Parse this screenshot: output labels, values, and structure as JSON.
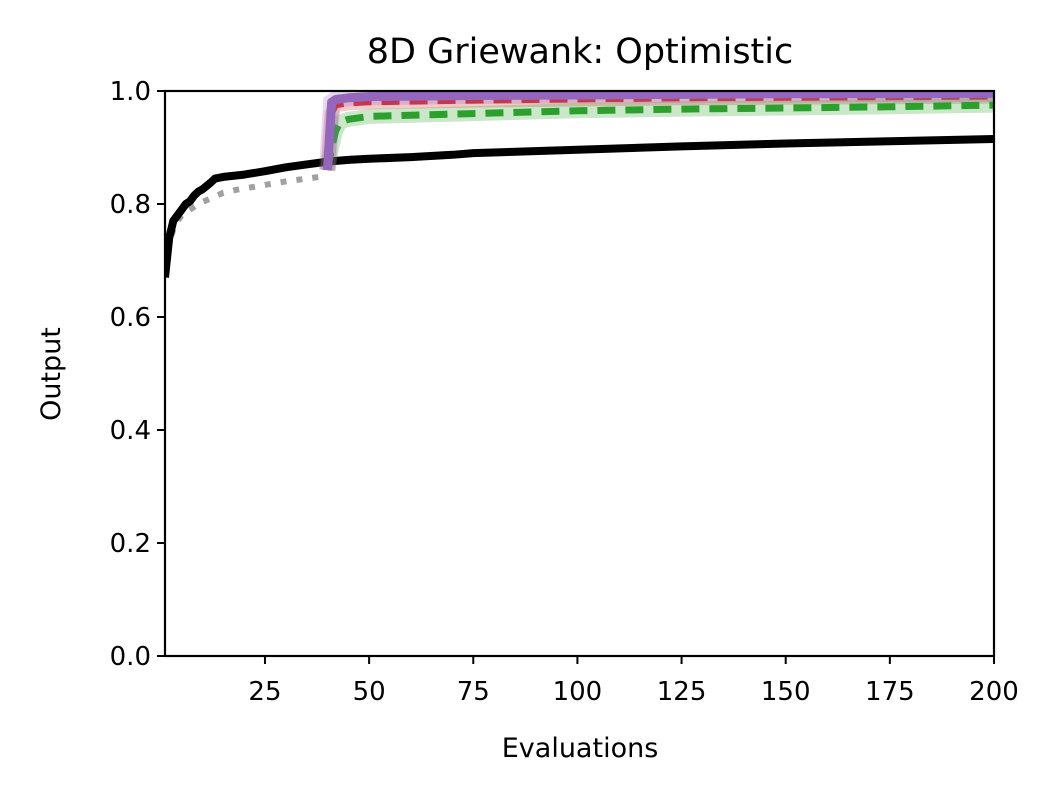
{
  "chart_data": {
    "type": "line",
    "title": "8D Griewank: Optimistic",
    "xlabel": "Evaluations",
    "ylabel": "Output",
    "xlim": [
      1,
      200
    ],
    "ylim": [
      0,
      1
    ],
    "xticks": [
      25,
      50,
      75,
      100,
      125,
      150,
      175,
      200
    ],
    "xtick_labels": [
      "25",
      "50",
      "75",
      "100",
      "125",
      "150",
      "175",
      "200"
    ],
    "yticks": [
      0,
      0.2,
      0.4,
      0.6,
      0.8,
      1.0
    ],
    "ytick_labels": [
      "0.0",
      "0.2",
      "0.4",
      "0.6",
      "0.8",
      "1.0"
    ],
    "grid": false,
    "series": [
      {
        "color": "#a0a0a0",
        "style": "dotted",
        "width": 6,
        "x": [
          1,
          2,
          3,
          4,
          5,
          7,
          9,
          12,
          15,
          18,
          22,
          26,
          30,
          35,
          40
        ],
        "y": [
          0.69,
          0.73,
          0.755,
          0.77,
          0.78,
          0.79,
          0.8,
          0.81,
          0.82,
          0.825,
          0.83,
          0.835,
          0.84,
          0.845,
          0.85
        ]
      },
      {
        "color": "#000000",
        "style": "solid",
        "width": 8,
        "x": [
          1,
          2,
          3,
          4,
          5,
          6,
          7,
          8,
          9,
          10,
          11,
          12,
          13,
          15,
          20,
          25,
          30,
          35,
          40,
          45,
          50,
          60,
          70,
          75,
          100,
          125,
          150,
          175,
          200
        ],
        "y": [
          0.67,
          0.74,
          0.77,
          0.78,
          0.79,
          0.8,
          0.805,
          0.815,
          0.822,
          0.826,
          0.832,
          0.838,
          0.845,
          0.848,
          0.852,
          0.858,
          0.865,
          0.87,
          0.875,
          0.878,
          0.88,
          0.883,
          0.887,
          0.89,
          0.896,
          0.902,
          0.907,
          0.911,
          0.915
        ]
      },
      {
        "color": "#d62728",
        "style": "dashed",
        "width": 6,
        "x": [
          40,
          41,
          42,
          45,
          50,
          75,
          100,
          125,
          150,
          175,
          200
        ],
        "y": [
          0.86,
          0.96,
          0.975,
          0.978,
          0.98,
          0.983,
          0.985,
          0.987,
          0.988,
          0.989,
          0.99
        ]
      },
      {
        "color": "#2ca02c",
        "style": "dashed",
        "width": 7,
        "x": [
          40,
          41,
          42,
          43,
          45,
          50,
          75,
          100,
          125,
          150,
          175,
          200
        ],
        "y": [
          0.86,
          0.9,
          0.93,
          0.945,
          0.95,
          0.955,
          0.96,
          0.965,
          0.968,
          0.97,
          0.972,
          0.975
        ]
      },
      {
        "color": "#9467bd",
        "style": "solid",
        "width": 9,
        "x": [
          40,
          41,
          42,
          45,
          50,
          75,
          100,
          125,
          150,
          175,
          200
        ],
        "y": [
          0.86,
          0.98,
          0.985,
          0.988,
          0.99,
          0.992,
          0.993,
          0.994,
          0.995,
          0.995,
          0.996
        ]
      }
    ]
  }
}
